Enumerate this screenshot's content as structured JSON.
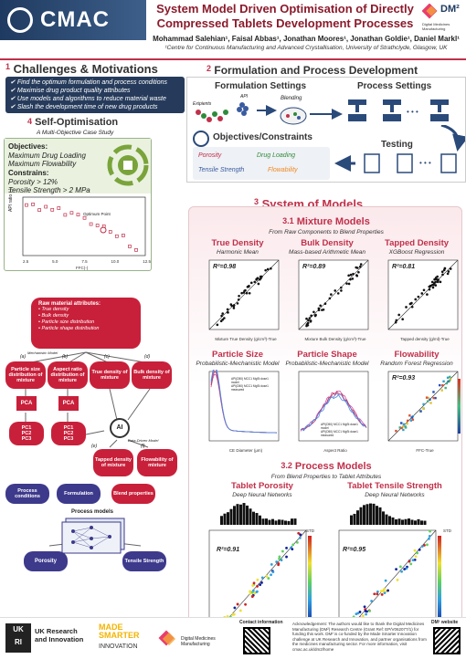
{
  "header": {
    "logo": "CMAC",
    "title_line1": "System Model Driven Optimisation of Directly",
    "title_line2": "Compressed Tablets Development Processes",
    "authors": "Mohammad Salehian¹, Faisal Abbas¹, Jonathan Moores¹, Jonathan Goldie¹, Daniel Markl¹",
    "affiliation": "¹Centre for Continuous Manufacturing and Advanced Crystallisation, University of Strathclyde, Glasgow, UK",
    "dmp": "DM²",
    "dmp_sub": "Digital Medicines Manufacturing"
  },
  "challenges": {
    "num": "1",
    "title": "Challenges & Motivations",
    "items": [
      "Find the optimum formulation and process conditions",
      "Maximise drug product quality attributes",
      "Use models and algorithms to reduce material waste",
      "Slash the development time of new drug products"
    ]
  },
  "self_opt": {
    "num": "4",
    "title": "Self-Optimisation",
    "subtitle": "A Multi-Objective Case Study",
    "objectives_label": "Objectives:",
    "obj1": "Maximum Drug Loading",
    "obj2": "Maximum Flowability",
    "constraints_label": "Constrains:",
    "con1": "Porosity > 12%",
    "con2": "Tensile Strength > 2 MPa",
    "optimum": "Optimum Point",
    "ylabel": "API ratio (-)",
    "xlabel": "FFC(-)",
    "xticks": [
      "2.5",
      "5.0",
      "7.5",
      "10.0",
      "12.5"
    ]
  },
  "formulation": {
    "num": "2",
    "title": "Formulation and Process Development",
    "formulation_settings": "Formulation Settings",
    "process_settings": "Process Settings",
    "api": "API",
    "excipients": "Exipients",
    "blending": "Blending",
    "objectives": "Objectives/Constraints",
    "testing": "Testing",
    "tags": [
      "Porosity",
      "Drug Loading",
      "Tensile Strength",
      "Flowability"
    ]
  },
  "system": {
    "num": "3",
    "title": "System of Models"
  },
  "mixture": {
    "num": "3.1",
    "title": "Mixture Models",
    "subtitle": "From Raw Components to Blend Properties",
    "plots": [
      {
        "title": "True Density",
        "sub": "Harmonic Mean",
        "r2": "R²=0.98",
        "xl": "Mixture True Density (g/cm³)-True",
        "yl": "Mixture True Density (g/cm³)-Predicted"
      },
      {
        "title": "Bulk Density",
        "sub": "Mass-based Arithmetic Mean",
        "r2": "R²=0.89",
        "xl": "Mixture Bulk Density (g/cm³)-True",
        "yl": "Mixture Bulk Density (g/cm³)-Predicted"
      },
      {
        "title": "Tapped Density",
        "sub": "XGBoost Regression",
        "r2": "R²=0.81",
        "xl": "Tapped density (g/ml)-True",
        "yl": "Tapped density (g/ml)-Predicted"
      },
      {
        "title": "Particle Size",
        "sub": "Probabilistic-Mechanistic Model",
        "r2": "",
        "xl": "CE Diameter (μm)",
        "yl": "Frequency (%)"
      },
      {
        "title": "Particle Shape",
        "sub": "Probabilistic-Mechanistic Model",
        "r2": "",
        "xl": "Aspect Ratio",
        "yl": "Frequency (%)"
      },
      {
        "title": "Flowability",
        "sub": "Random Forest Regression",
        "r2": "R²=0.93",
        "xl": "FFC-True",
        "yl": "FFC-Predicted"
      }
    ],
    "legend1": "API(D50) MCC1 MgSt dose1 model",
    "legend2": "API(D50) MCC1 MgSt dose1 measured"
  },
  "process": {
    "num": "3.2",
    "title": "Process Models",
    "subtitle": "From Blend Properties to Tablet Attributes",
    "porosity": {
      "title": "Tablet Porosity",
      "sub": "Deep Neural Networks",
      "r2": "R²=0.91",
      "xl": "Predicted Porosity (-)",
      "yl": "Measured Porosity (-)"
    },
    "tensile": {
      "title": "Tablet Tensile Strength",
      "sub": "Deep Neural Networks",
      "r2": "R²=0.95",
      "xl": "Predicted Tensile Strength (MPa)",
      "yl": "Measured Tensile Strength (MPa)"
    },
    "std": "STD"
  },
  "flow": {
    "raw_title": "Raw material attributes:",
    "raw_items": [
      "True density",
      "Bulk density",
      "Particle size distribution",
      "Particle shape distribution"
    ],
    "mech": "Mechanistic Model",
    "data_driven": "Data-Driven Model",
    "a": "(a)",
    "b": "(b)",
    "c": "(c)",
    "d": "(d)",
    "e": "(e)",
    "f": "(f)",
    "g": "(g)",
    "h": "(h)",
    "psd": "Particle size distribution of mixture",
    "asp": "Aspect ratio distribution of mixture",
    "td": "True density of mixture",
    "bd": "Bulk density of mixture",
    "pca": "PCA",
    "pcs": [
      "PC1",
      "PC2",
      "PC3"
    ],
    "ai": "AI",
    "tapped": "Tapped density of mixture",
    "flowability": "Flowability of mixture",
    "proc_cond": "Process conditions",
    "formulation": "Formulation",
    "blend_props": "Blend properties",
    "process_models": "Process models",
    "porosity": "Porosity",
    "tensile": "Tensile Strength"
  },
  "footer": {
    "ukri": "UK Research and Innovation",
    "made": "MADE SMARTER",
    "innov": "INNOVATION",
    "dmp": "Digital Medicines Manufacturing",
    "contact": "Contact information",
    "ack": "Acknowledgement: The authors would like to thank the Digital Medicines Manufacturing (DM²) Research Centre (Grant Ref: EP/V062077/1) for funding this work. DM² is co-funded by the Made Smarter Innovation challenge at UK Research and Innovation, and partner organisations from the medicines manufacturing sector. For more information, visit cmac.ac.uk/dm2/home",
    "dmp_web": "DM² website"
  },
  "colors": {
    "accent": "#c0304a",
    "navy": "#263b5b",
    "purple": "#3d3a8c"
  }
}
